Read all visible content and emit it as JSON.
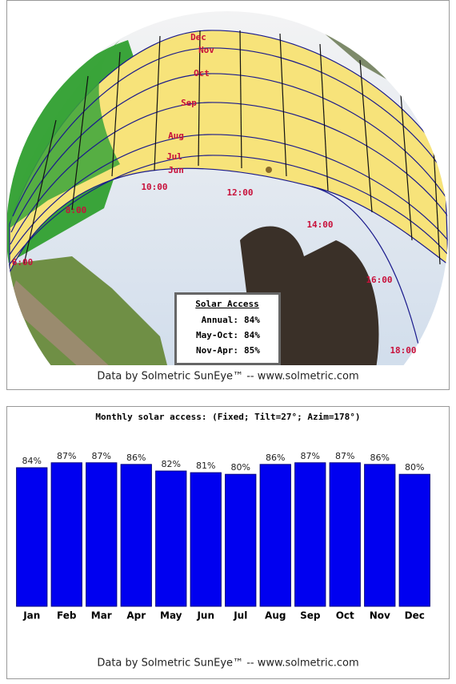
{
  "sun_path": {
    "months": [
      "Dec",
      "Nov",
      "Oct",
      "Sep",
      "Aug",
      "Jul",
      "Jun"
    ],
    "hours": [
      "6:00",
      "8:00",
      "10:00",
      "12:00",
      "14:00",
      "16:00",
      "18:00"
    ],
    "solar_access": {
      "title": "Solar Access",
      "rows": [
        [
          "Annual:",
          "84%"
        ],
        [
          "May-Oct:",
          "84%"
        ],
        [
          "Nov-Apr:",
          "85%"
        ]
      ]
    },
    "source": "Data by Solmetric SunEye™ -- www.solmetric.com"
  },
  "chart_data": {
    "type": "bar",
    "title": "Monthly solar access: (Fixed; Tilt=27°; Azim=178°)",
    "categories": [
      "Jan",
      "Feb",
      "Mar",
      "Apr",
      "May",
      "Jun",
      "Jul",
      "Aug",
      "Sep",
      "Oct",
      "Nov",
      "Dec"
    ],
    "values": [
      84,
      87,
      87,
      86,
      82,
      81,
      80,
      86,
      87,
      87,
      86,
      80
    ],
    "value_labels": [
      "84%",
      "87%",
      "87%",
      "86%",
      "82%",
      "81%",
      "80%",
      "86%",
      "87%",
      "87%",
      "86%",
      "80%"
    ],
    "color": "#0000f0",
    "ylim": [
      0,
      100
    ],
    "source": "Data by Solmetric SunEye™ -- www.solmetric.com"
  }
}
